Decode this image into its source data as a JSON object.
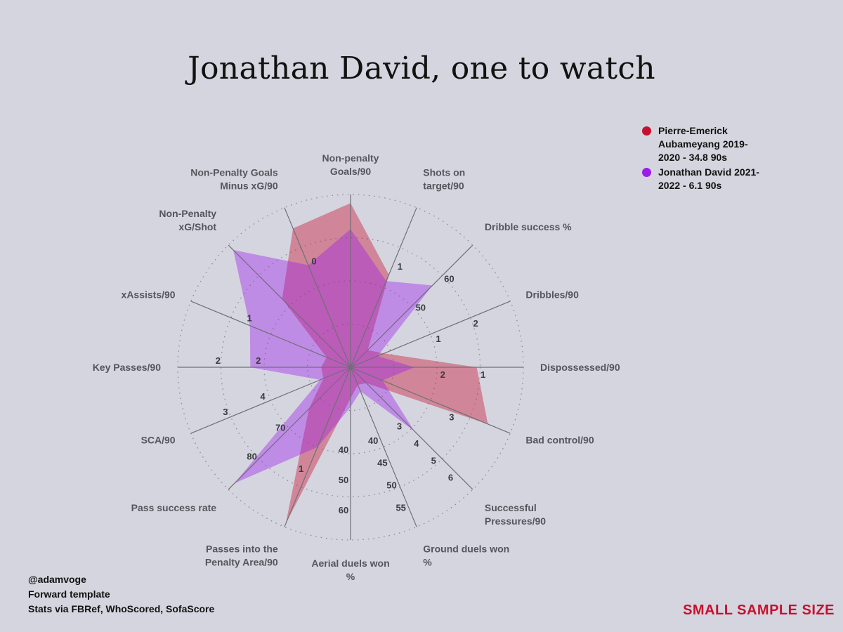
{
  "title": "Jonathan David, one to watch",
  "legend": [
    {
      "label": "Pierre-Emerick Aubameyang 2019-2020 - 34.8 90s",
      "color": "#c8102e",
      "lines": [
        "Pierre-Emerick",
        "Aubameyang 2019-",
        "2020 - 34.8 90s"
      ]
    },
    {
      "label": "Jonathan David 2021-2022 - 6.1 90s",
      "color": "#9b1dea",
      "lines": [
        "Jonathan David 2021-",
        "2022 - 6.1 90s"
      ]
    }
  ],
  "credits": [
    "@adamvoge",
    "Forward template",
    "Stats via FBRef, WhoScored, SofaScore"
  ],
  "warning": "SMALL SAMPLE SIZE",
  "chart_data": {
    "type": "radar",
    "title": "Jonathan David, one to watch",
    "scale": "percentile 0-100 per axis",
    "grid": "dotted concentric rings",
    "legend_position": "top-right",
    "axes": [
      {
        "label": "Non-penalty Goals/90",
        "lines": [
          "Non-penalty",
          "Goals/90"
        ],
        "ticks": []
      },
      {
        "label": "Shots on target/90",
        "lines": [
          "Shots on",
          "target/90"
        ],
        "ticks": [
          "1"
        ]
      },
      {
        "label": "Dribble success %",
        "lines": [
          "Dribble success %"
        ],
        "ticks": [
          "50",
          "60"
        ]
      },
      {
        "label": "Dribbles/90",
        "lines": [
          "Dribbles/90"
        ],
        "ticks": [
          "1",
          "2"
        ]
      },
      {
        "label": "Dispossessed/90",
        "lines": [
          "Dispossessed/90"
        ],
        "ticks": [
          "2",
          "1"
        ]
      },
      {
        "label": "Bad control/90",
        "lines": [
          "Bad control/90"
        ],
        "ticks": [
          "3"
        ]
      },
      {
        "label": "Successful Pressures/90",
        "lines": [
          "Successful",
          "Pressures/90"
        ],
        "ticks": [
          "3",
          "4",
          "5",
          "6"
        ]
      },
      {
        "label": "Ground duels won %",
        "lines": [
          "Ground duels won",
          "%"
        ],
        "ticks": [
          "40",
          "45",
          "50",
          "55"
        ]
      },
      {
        "label": "Aerial duels won %",
        "lines": [
          "Aerial duels won",
          "%"
        ],
        "ticks": [
          "40",
          "50",
          "60"
        ]
      },
      {
        "label": "Passes into the Penalty Area/90",
        "lines": [
          "Passes into the",
          "Penalty Area/90"
        ],
        "ticks": [
          "1"
        ]
      },
      {
        "label": "Pass success rate",
        "lines": [
          "Pass success rate"
        ],
        "ticks": [
          "70",
          "80"
        ]
      },
      {
        "label": "SCA/90",
        "lines": [
          "SCA/90"
        ],
        "ticks": [
          "4",
          "3"
        ]
      },
      {
        "label": "Key Passes/90",
        "lines": [
          "Key Passes/90"
        ],
        "ticks": [
          "2",
          "2"
        ]
      },
      {
        "label": "xAssists/90",
        "lines": [
          "xAssists/90"
        ],
        "ticks": [
          "1"
        ]
      },
      {
        "label": "Non-Penalty xG/Shot",
        "lines": [
          "Non-Penalty",
          "xG/Shot"
        ],
        "ticks": []
      },
      {
        "label": "Non-Penalty Goals Minus xG/90",
        "lines": [
          "Non-Penalty Goals",
          "Minus xG/90"
        ],
        "ticks": [
          "0"
        ]
      }
    ],
    "series": [
      {
        "name": "Pierre-Emerick Aubameyang 2019-2020 - 34.8 90s",
        "color": "#c8102e",
        "values": [
          95,
          58,
          14,
          21,
          73,
          86,
          13,
          11,
          18,
          98,
          34,
          17,
          17,
          15,
          56,
          87
        ]
      },
      {
        "name": "Jonathan David 2021-2022 - 6.1 90s",
        "color": "#9b1dea",
        "values": [
          80,
          54,
          67,
          17,
          37,
          20,
          52,
          15,
          23,
          50,
          95,
          19,
          58,
          63,
          96,
          64
        ]
      }
    ]
  }
}
